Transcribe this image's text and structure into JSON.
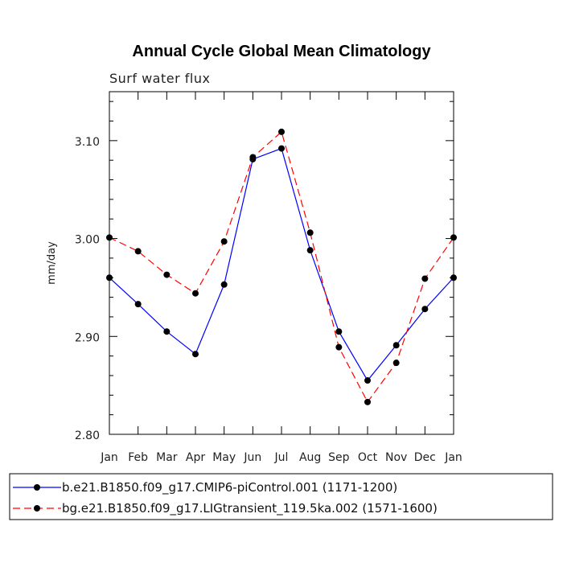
{
  "chart_data": {
    "type": "line",
    "title": "Annual Cycle Global Mean Climatology",
    "subtitle": "Surf water flux",
    "xlabel": "",
    "ylabel": "mm/day",
    "categories": [
      "Jan",
      "Feb",
      "Mar",
      "Apr",
      "May",
      "Jun",
      "Jul",
      "Aug",
      "Sep",
      "Oct",
      "Nov",
      "Dec",
      "Jan"
    ],
    "ylim": [
      2.8,
      3.15
    ],
    "yticks": [
      2.8,
      2.9,
      3.0,
      3.1
    ],
    "ytick_labels": [
      "2.80",
      "2.90",
      "3.00",
      "3.10"
    ],
    "series": [
      {
        "name": "b.e21.B1850.f09_g17.CMIP6-piControl.001 (1171-1200)",
        "color": "#0000ff",
        "dash": "solid",
        "values": [
          2.96,
          2.933,
          2.905,
          2.882,
          2.953,
          3.081,
          3.092,
          2.988,
          2.905,
          2.855,
          2.891,
          2.928,
          2.96
        ]
      },
      {
        "name": "bg.e21.B1850.f09_g17.LIGtransient_119.5ka.002 (1571-1600)",
        "color": "#ff0000",
        "dash": "dashed",
        "values": [
          3.001,
          2.987,
          2.963,
          2.944,
          2.997,
          3.083,
          3.109,
          3.006,
          2.889,
          2.833,
          2.873,
          2.959,
          3.001
        ]
      }
    ],
    "legend_position": "bottom"
  }
}
